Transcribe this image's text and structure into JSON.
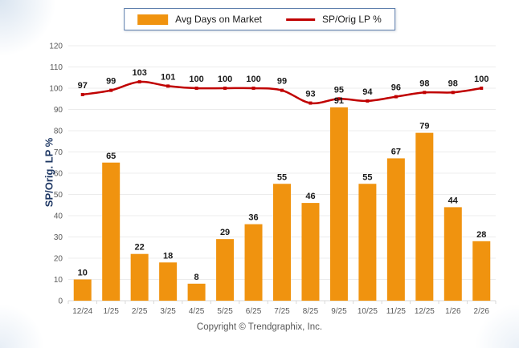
{
  "legend": {
    "items": [
      {
        "label": "Avg Days on Market",
        "swatch": "bar",
        "color": "#F0930F"
      },
      {
        "label": "SP/Orig LP %",
        "swatch": "line",
        "color": "#C00000"
      }
    ]
  },
  "footer": {
    "copyright": "Copyright © Trendgraphix, Inc."
  },
  "chart_data": {
    "type": "bar+line",
    "title": "",
    "xlabel": "",
    "ylabel": "SP/Orig. LP %",
    "ylim": [
      0,
      120
    ],
    "ytick_step": 10,
    "grid": true,
    "legend_position": "top-center",
    "categories": [
      "12/24",
      "1/25",
      "2/25",
      "3/25",
      "4/25",
      "5/25",
      "6/25",
      "7/25",
      "8/25",
      "9/25",
      "10/25",
      "11/25",
      "12/25",
      "1/26",
      "2/26"
    ],
    "series": [
      {
        "name": "Avg Days on Market",
        "type": "bar",
        "color": "#F0930F",
        "values": [
          10,
          65,
          22,
          18,
          8,
          29,
          36,
          55,
          46,
          91,
          55,
          67,
          79,
          44,
          28
        ]
      },
      {
        "name": "SP/Orig LP %",
        "type": "line",
        "color": "#C00000",
        "values": [
          97,
          99,
          103,
          101,
          100,
          100,
          100,
          99,
          93,
          95,
          94,
          96,
          98,
          98,
          100
        ]
      }
    ],
    "styles": {
      "grid_color": "#ececec",
      "axis_color": "#d9d9d9",
      "tick_label_color": "#595959",
      "data_label_color": "#1a1a1a"
    }
  }
}
